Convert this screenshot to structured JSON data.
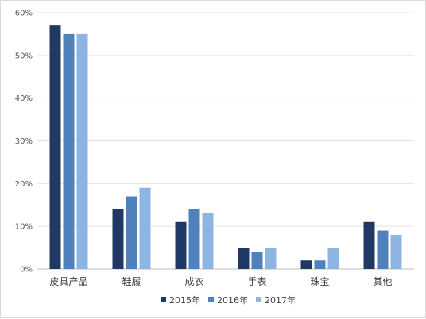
{
  "chart_data": {
    "type": "bar",
    "categories": [
      "皮具产品",
      "鞋履",
      "成衣",
      "手表",
      "珠宝",
      "其他"
    ],
    "series": [
      {
        "name": "2015年",
        "values": [
          57,
          14,
          11,
          5,
          2,
          11
        ],
        "color": "#1f3864"
      },
      {
        "name": "2016年",
        "values": [
          55,
          17,
          14,
          4,
          2,
          9
        ],
        "color": "#4f81bd"
      },
      {
        "name": "2017年",
        "values": [
          55,
          19,
          13,
          5,
          5,
          8
        ],
        "color": "#8eb4e3"
      }
    ],
    "y_ticks": [
      "0%",
      "10%",
      "20%",
      "30%",
      "40%",
      "50%",
      "60%"
    ],
    "ylim": [
      0,
      60
    ],
    "y_unit": "%",
    "grid": true,
    "legend_position": "bottom"
  }
}
